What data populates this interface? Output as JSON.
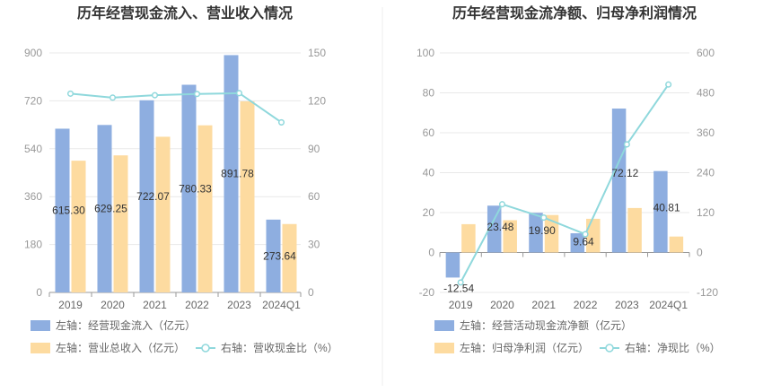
{
  "chart_data": [
    {
      "type": "bar",
      "title": "历年经营现金流入、营业收入情况",
      "categories": [
        "2019",
        "2020",
        "2021",
        "2022",
        "2023",
        "2024Q1"
      ],
      "left_axis": {
        "ticks": [
          "0",
          "180",
          "360",
          "540",
          "720",
          "900"
        ],
        "ylim": [
          0,
          900
        ]
      },
      "right_axis": {
        "ticks": [
          "0",
          "30",
          "60",
          "90",
          "120",
          "150"
        ],
        "ylim": [
          0,
          150
        ]
      },
      "series": [
        {
          "name": "左轴：经营现金流入（亿元）",
          "type": "bar",
          "axis": "left",
          "color": "#8eaee0",
          "values": [
            615.3,
            629.25,
            722.07,
            780.33,
            891.78,
            273.64
          ],
          "labels": [
            "615.30",
            "629.25",
            "722.07",
            "780.33",
            "891.78",
            "273.64"
          ]
        },
        {
          "name": "左轴：营业总收入（亿元）",
          "type": "bar",
          "axis": "left",
          "color": "#fddba0",
          "values": [
            495,
            515,
            585,
            628,
            718,
            257
          ]
        },
        {
          "name": "右轴：营收现金比（%）",
          "type": "line",
          "axis": "right",
          "color": "#8fd8dc",
          "values": [
            124.5,
            122.0,
            123.5,
            124.3,
            124.8,
            106.5
          ]
        }
      ]
    },
    {
      "type": "bar",
      "title": "历年经营现金流净额、归母净利润情况",
      "categories": [
        "2019",
        "2020",
        "2021",
        "2022",
        "2023",
        "2024Q1"
      ],
      "left_axis": {
        "ticks": [
          "-20",
          "0",
          "20",
          "40",
          "60",
          "80",
          "100"
        ],
        "ylim": [
          -20,
          100
        ]
      },
      "right_axis": {
        "ticks": [
          "-120",
          "0",
          "120",
          "240",
          "360",
          "480",
          "600"
        ],
        "ylim": [
          -120,
          600
        ]
      },
      "series": [
        {
          "name": "左轴：经营活动现金流净额（亿元）",
          "type": "bar",
          "axis": "left",
          "color": "#8eaee0",
          "values": [
            -12.54,
            23.48,
            19.9,
            9.64,
            72.12,
            40.81
          ],
          "labels": [
            "-12.54",
            "23.48",
            "19.90",
            "9.64",
            "72.12",
            "40.81"
          ]
        },
        {
          "name": "左轴：归母净利润（亿元）",
          "type": "bar",
          "axis": "left",
          "color": "#fddba0",
          "values": [
            14.2,
            16.2,
            18.8,
            16.9,
            22.3,
            8.0
          ]
        },
        {
          "name": "右轴：净现比（%）",
          "type": "line",
          "axis": "right",
          "color": "#8fd8dc",
          "values": [
            -90,
            145,
            105,
            55,
            325,
            505
          ]
        }
      ]
    }
  ]
}
